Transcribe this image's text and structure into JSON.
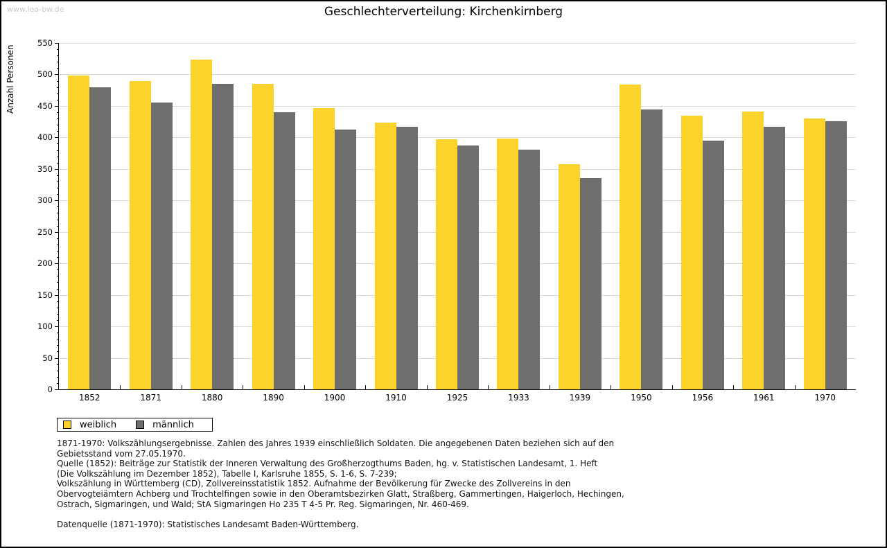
{
  "page": {
    "watermark": "www.leo-bw.de",
    "title": "Geschlechterverteilung: Kirchenkirnberg"
  },
  "chart_data": {
    "type": "bar",
    "title": "Geschlechterverteilung: Kirchenkirnberg",
    "xlabel": "",
    "ylabel": "Anzahl Personen",
    "ylim": [
      0,
      550
    ],
    "ytick_step": 50,
    "yminortick_step": 10,
    "grid": true,
    "legend_position": "bottom-left",
    "categories": [
      "1852",
      "1871",
      "1880",
      "1890",
      "1900",
      "1910",
      "1925",
      "1933",
      "1939",
      "1950",
      "1956",
      "1961",
      "1970"
    ],
    "series": [
      {
        "name": "weiblich",
        "color": "#FCD32B",
        "values": [
          498,
          489,
          524,
          485,
          447,
          424,
          397,
          398,
          358,
          484,
          434,
          441,
          430
        ]
      },
      {
        "name": "männlich",
        "color": "#6E6E6E",
        "values": [
          480,
          455,
          485,
          440,
          412,
          417,
          387,
          381,
          336,
          444,
          395,
          417,
          426
        ]
      }
    ]
  },
  "legend": {
    "items": [
      {
        "label": "weiblich",
        "color": "#FCD32B"
      },
      {
        "label": "männlich",
        "color": "#6E6E6E"
      }
    ]
  },
  "footer": {
    "lines": [
      "1871-1970: Volkszählungsergebnisse. Zahlen des Jahres 1939 einschließlich Soldaten. Die angegebenen Daten beziehen sich auf den",
      "Gebietsstand vom 27.05.1970.",
      "Quelle (1852): Beiträge zur Statistik der Inneren Verwaltung des Großherzogthums Baden, hg. v. Statistischen Landesamt, 1. Heft",
      "(Die Volkszählung im Dezember 1852), Tabelle I, Karlsruhe 1855, S. 1-6, S. 7-239;",
      "Volkszählung in Württemberg (CD), Zollvereinsstatistik 1852. Aufnahme der Bevölkerung für Zwecke des Zollvereins in den",
      "Obervogteiämtern Achberg und Trochtelfingen sowie in den Oberamtsbezirken Glatt, Straßberg, Gammertingen, Haigerloch, Hechingen,",
      "Ostrach, Sigmaringen, und Wald; StA Sigmaringen Ho 235 T 4-5 Pr. Reg. Sigmaringen, Nr. 460-469.",
      "",
      "Datenquelle (1871-1970): Statistisches Landesamt Baden-Württemberg."
    ]
  },
  "colors": {
    "gridline": "#dbdbdb",
    "axis": "#000000",
    "watermark": "#c9c9c9",
    "page_border": "#000000"
  }
}
